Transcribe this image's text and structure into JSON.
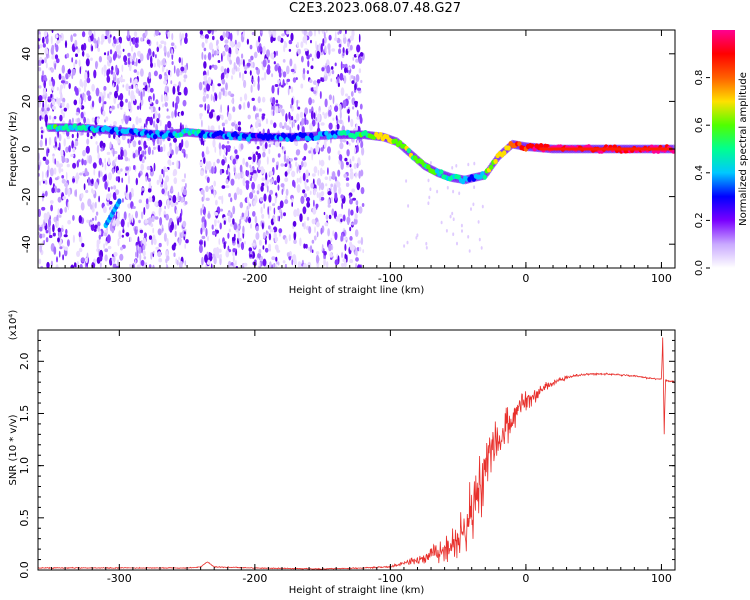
{
  "title": "C2E3.2023.068.07.48.G27",
  "chart_data": [
    {
      "type": "heatmap",
      "xlabel": "Height of straight line (km)",
      "ylabel": "Frequency (Hz)",
      "xlim": [
        -360,
        110
      ],
      "ylim": [
        -50,
        50
      ],
      "x_ticks": [
        -300,
        -200,
        -100,
        0,
        100
      ],
      "y_ticks": [
        -40,
        -20,
        0,
        20,
        40
      ],
      "colorbar": {
        "label": "Normalized spectral amplitude",
        "range": [
          0,
          1
        ],
        "ticks": [
          "0.0",
          "0.2",
          "0.4",
          "0.6",
          "0.8"
        ],
        "colors": [
          "#ffffff",
          "#c9a9ff",
          "#7a00ff",
          "#0000ff",
          "#00c8ff",
          "#00ff90",
          "#50ff00",
          "#ffe000",
          "#ff6000",
          "#ff0000",
          "#ff0090"
        ]
      },
      "ridge": {
        "x": [
          -350,
          -330,
          -310,
          -290,
          -270,
          -250,
          -230,
          -200,
          -170,
          -140,
          -120,
          -105,
          -95,
          -85,
          -75,
          -65,
          -55,
          -45,
          -38,
          -30,
          -20,
          -10,
          0,
          20,
          60,
          108
        ],
        "freq": [
          9,
          9,
          8,
          7,
          6,
          7,
          6,
          5,
          5,
          6,
          6,
          5,
          3,
          -2,
          -7,
          -10,
          -12,
          -13,
          -12,
          -11,
          -3,
          2,
          1,
          0,
          0,
          0
        ],
        "amplitude": [
          0.45,
          0.4,
          0.3,
          0.35,
          0.3,
          0.4,
          0.3,
          0.25,
          0.3,
          0.35,
          0.45,
          0.7,
          0.6,
          0.55,
          0.5,
          0.45,
          0.4,
          0.35,
          0.3,
          0.5,
          0.65,
          0.75,
          0.85,
          0.95,
          0.9,
          0.9
        ]
      },
      "secondary_feature": {
        "x": [
          -310,
          -300
        ],
        "freq": [
          -32,
          -22
        ]
      },
      "data_gaps": [
        [
          -250,
          -240
        ],
        [
          -120,
          110
        ]
      ]
    },
    {
      "type": "line",
      "xlabel": "Height of straight line (km)",
      "ylabel": "SNR (10 * v/v)",
      "y_scale_label": "(x10⁴)",
      "xlim": [
        -360,
        110
      ],
      "ylim": [
        0,
        2.3
      ],
      "x_ticks": [
        -300,
        -200,
        -100,
        0,
        100
      ],
      "y_ticks": [
        "0.0",
        "0.5",
        "1.0",
        "1.5",
        "2.0"
      ],
      "series": [
        {
          "color": "#e8302c",
          "x": [
            -360,
            -340,
            -300,
            -250,
            -240,
            -235,
            -230,
            -200,
            -150,
            -120,
            -100,
            -80,
            -60,
            -50,
            -45,
            -40,
            -35,
            -30,
            -25,
            -20,
            -15,
            -10,
            -5,
            0,
            10,
            20,
            30,
            40,
            50,
            60,
            70,
            80,
            90,
            100,
            101,
            102,
            103,
            110
          ],
          "y": [
            0.02,
            0.02,
            0.02,
            0.02,
            0.03,
            0.08,
            0.03,
            0.02,
            0.01,
            0.02,
            0.03,
            0.1,
            0.2,
            0.3,
            0.45,
            0.6,
            0.8,
            1.0,
            1.15,
            1.25,
            1.35,
            1.45,
            1.55,
            1.63,
            1.72,
            1.8,
            1.85,
            1.87,
            1.88,
            1.88,
            1.87,
            1.86,
            1.84,
            1.83,
            2.25,
            1.3,
            1.82,
            1.8
          ],
          "noise_amplitude": [
            0.01,
            0.01,
            0.01,
            0.01,
            0.01,
            0.02,
            0.01,
            0.01,
            0.01,
            0.01,
            0.02,
            0.08,
            0.25,
            0.4,
            0.55,
            0.7,
            0.75,
            0.7,
            0.65,
            0.55,
            0.45,
            0.35,
            0.3,
            0.2,
            0.15,
            0.08,
            0.04,
            0.02,
            0.02,
            0.02,
            0.02,
            0.02,
            0.02,
            0.02,
            0,
            0,
            0.02,
            0.02
          ]
        }
      ]
    }
  ]
}
